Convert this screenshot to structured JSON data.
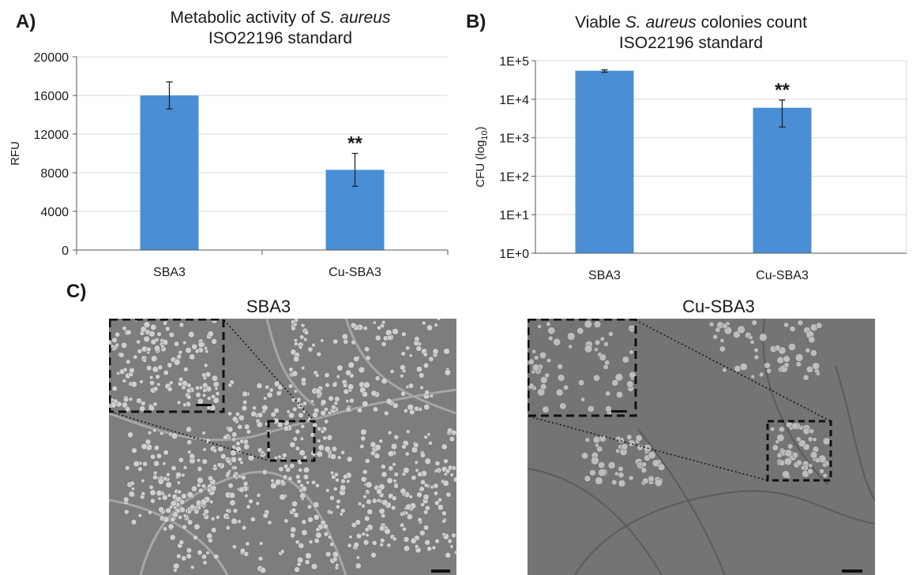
{
  "panels": {
    "a_label": "A)",
    "b_label": "B)",
    "c_label": "C)"
  },
  "chart_data": [
    {
      "type": "bar",
      "title_prefix": "Metabolic activity of ",
      "title_italic": "S. aureus",
      "title_line2": "ISO22196 standard",
      "ylabel": "RFU",
      "xlabel": "",
      "categories": [
        "SBA3",
        "Cu-SBA3"
      ],
      "values": [
        16000,
        8300
      ],
      "errors": [
        1400,
        1700
      ],
      "annotations": [
        "",
        "**"
      ],
      "ylim": [
        0,
        20000
      ],
      "yticks": [
        0,
        4000,
        8000,
        12000,
        16000,
        20000
      ],
      "ytick_labels": [
        "0",
        "4000",
        "8000",
        "12000",
        "16000",
        "20000"
      ],
      "scale": "linear",
      "grid": true,
      "bar_color": "#4a8fd6"
    },
    {
      "type": "bar",
      "title_prefix": "Viable ",
      "title_italic": "S. aureus",
      "title_suffix": " colonies count",
      "title_line2": "ISO22196 standard",
      "ylabel_main": "CFU (log",
      "ylabel_sub": "10",
      "ylabel_end": ")",
      "xlabel": "",
      "categories": [
        "SBA3",
        "Cu-SBA3"
      ],
      "values": [
        55000,
        6000
      ],
      "error_low": [
        50000,
        1900
      ],
      "error_high": [
        58000,
        9500
      ],
      "annotations": [
        "",
        "**"
      ],
      "ylim": [
        1,
        100000
      ],
      "ytick_labels": [
        "1E+0",
        "1E+1",
        "1E+2",
        "1E+3",
        "1E+4",
        "1E+5"
      ],
      "scale": "log",
      "grid": true,
      "bar_color": "#4a8fd6"
    }
  ],
  "sem": {
    "left_title": "SBA3",
    "right_title": "Cu-SBA3"
  }
}
